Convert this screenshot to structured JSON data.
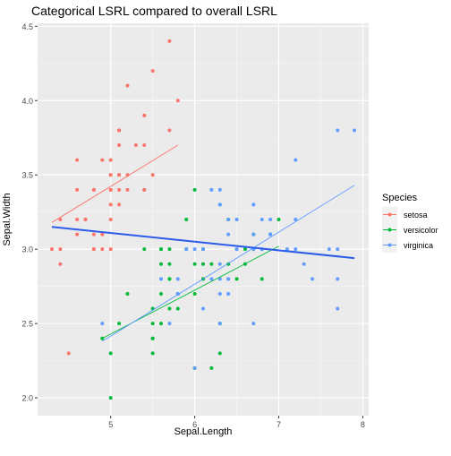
{
  "chart_data": {
    "type": "scatter",
    "title": "Categorical LSRL compared to overall LSRL",
    "xlabel": "Sepal.Length",
    "ylabel": "Sepal.Width",
    "xlim": [
      4.13,
      8.07
    ],
    "ylim": [
      1.88,
      4.52
    ],
    "x_ticks": [
      5,
      6,
      7,
      8
    ],
    "x_tick_labels": [
      "5",
      "6",
      "7",
      "8"
    ],
    "y_ticks": [
      2.0,
      2.5,
      3.0,
      3.5,
      4.0,
      4.5
    ],
    "y_tick_labels": [
      "2.0",
      "2.5",
      "3.0",
      "3.5",
      "4.0",
      "4.5"
    ],
    "grid": true,
    "legend": {
      "title": "Species",
      "position": "right"
    },
    "series": [
      {
        "name": "setosa",
        "color": "#F8766D",
        "points": [
          [
            5.1,
            3.5
          ],
          [
            4.9,
            3.0
          ],
          [
            4.7,
            3.2
          ],
          [
            4.6,
            3.1
          ],
          [
            5.0,
            3.6
          ],
          [
            5.4,
            3.9
          ],
          [
            4.6,
            3.4
          ],
          [
            5.0,
            3.4
          ],
          [
            4.4,
            2.9
          ],
          [
            4.9,
            3.1
          ],
          [
            5.4,
            3.7
          ],
          [
            4.8,
            3.4
          ],
          [
            4.8,
            3.0
          ],
          [
            4.3,
            3.0
          ],
          [
            5.8,
            4.0
          ],
          [
            5.7,
            4.4
          ],
          [
            5.4,
            3.9
          ],
          [
            5.1,
            3.5
          ],
          [
            5.7,
            3.8
          ],
          [
            5.1,
            3.8
          ],
          [
            5.4,
            3.4
          ],
          [
            5.1,
            3.7
          ],
          [
            4.6,
            3.6
          ],
          [
            5.1,
            3.3
          ],
          [
            4.8,
            3.4
          ],
          [
            5.0,
            3.0
          ],
          [
            5.0,
            3.4
          ],
          [
            5.2,
            3.5
          ],
          [
            5.2,
            3.4
          ],
          [
            4.7,
            3.2
          ],
          [
            4.8,
            3.1
          ],
          [
            5.4,
            3.4
          ],
          [
            5.2,
            4.1
          ],
          [
            5.5,
            4.2
          ],
          [
            4.9,
            3.1
          ],
          [
            5.0,
            3.2
          ],
          [
            5.5,
            3.5
          ],
          [
            4.9,
            3.6
          ],
          [
            4.4,
            3.0
          ],
          [
            5.1,
            3.4
          ],
          [
            5.0,
            3.5
          ],
          [
            4.5,
            2.3
          ],
          [
            4.4,
            3.2
          ],
          [
            5.0,
            3.5
          ],
          [
            5.1,
            3.8
          ],
          [
            4.8,
            3.0
          ],
          [
            5.1,
            3.8
          ],
          [
            4.6,
            3.2
          ],
          [
            5.3,
            3.7
          ],
          [
            5.0,
            3.3
          ]
        ],
        "fit": [
          [
            4.3,
            3.18
          ],
          [
            5.8,
            3.7
          ]
        ]
      },
      {
        "name": "versicolor",
        "color": "#00BA38",
        "points": [
          [
            7.0,
            3.2
          ],
          [
            6.4,
            3.2
          ],
          [
            6.9,
            3.1
          ],
          [
            5.5,
            2.3
          ],
          [
            6.5,
            2.8
          ],
          [
            5.7,
            2.8
          ],
          [
            6.3,
            3.3
          ],
          [
            4.9,
            2.4
          ],
          [
            6.6,
            2.9
          ],
          [
            5.2,
            2.7
          ],
          [
            5.0,
            2.0
          ],
          [
            5.9,
            3.0
          ],
          [
            6.0,
            2.2
          ],
          [
            6.1,
            2.9
          ],
          [
            5.6,
            2.9
          ],
          [
            6.7,
            3.1
          ],
          [
            5.6,
            3.0
          ],
          [
            5.8,
            2.7
          ],
          [
            6.2,
            2.2
          ],
          [
            5.6,
            2.5
          ],
          [
            5.9,
            3.2
          ],
          [
            6.1,
            2.8
          ],
          [
            6.3,
            2.5
          ],
          [
            6.1,
            2.8
          ],
          [
            6.4,
            2.9
          ],
          [
            6.6,
            3.0
          ],
          [
            6.8,
            2.8
          ],
          [
            6.7,
            3.0
          ],
          [
            6.0,
            2.9
          ],
          [
            5.7,
            2.6
          ],
          [
            5.5,
            2.4
          ],
          [
            5.5,
            2.4
          ],
          [
            5.8,
            2.7
          ],
          [
            6.0,
            2.7
          ],
          [
            5.4,
            3.0
          ],
          [
            6.0,
            3.4
          ],
          [
            6.7,
            3.1
          ],
          [
            6.3,
            2.3
          ],
          [
            5.6,
            3.0
          ],
          [
            5.5,
            2.5
          ],
          [
            5.5,
            2.6
          ],
          [
            6.1,
            3.0
          ],
          [
            5.8,
            2.6
          ],
          [
            5.0,
            2.3
          ],
          [
            5.6,
            2.7
          ],
          [
            5.7,
            3.0
          ],
          [
            5.7,
            2.9
          ],
          [
            6.2,
            2.9
          ],
          [
            5.1,
            2.5
          ],
          [
            5.7,
            2.8
          ]
        ],
        "fit": [
          [
            4.9,
            2.4
          ],
          [
            7.0,
            3.02
          ]
        ]
      },
      {
        "name": "virginica",
        "color": "#619CFF",
        "points": [
          [
            6.3,
            3.3
          ],
          [
            5.8,
            2.7
          ],
          [
            7.1,
            3.0
          ],
          [
            6.3,
            2.9
          ],
          [
            6.5,
            3.0
          ],
          [
            7.6,
            3.0
          ],
          [
            4.9,
            2.5
          ],
          [
            7.3,
            2.9
          ],
          [
            6.7,
            2.5
          ],
          [
            7.2,
            3.6
          ],
          [
            6.5,
            3.2
          ],
          [
            6.4,
            2.7
          ],
          [
            6.8,
            3.0
          ],
          [
            5.7,
            2.5
          ],
          [
            5.8,
            2.8
          ],
          [
            6.4,
            3.2
          ],
          [
            6.5,
            3.0
          ],
          [
            7.7,
            3.8
          ],
          [
            7.7,
            2.6
          ],
          [
            6.0,
            2.2
          ],
          [
            6.9,
            3.2
          ],
          [
            5.6,
            2.8
          ],
          [
            7.7,
            2.8
          ],
          [
            6.3,
            2.7
          ],
          [
            6.7,
            3.3
          ],
          [
            7.2,
            3.2
          ],
          [
            6.2,
            2.8
          ],
          [
            6.1,
            3.0
          ],
          [
            6.4,
            2.8
          ],
          [
            7.2,
            3.0
          ],
          [
            7.4,
            2.8
          ],
          [
            7.9,
            3.8
          ],
          [
            6.4,
            2.8
          ],
          [
            6.3,
            2.8
          ],
          [
            6.1,
            2.6
          ],
          [
            7.7,
            3.0
          ],
          [
            6.3,
            3.4
          ],
          [
            6.4,
            3.1
          ],
          [
            6.0,
            3.0
          ],
          [
            6.9,
            3.1
          ],
          [
            6.7,
            3.1
          ],
          [
            6.9,
            3.1
          ],
          [
            5.8,
            2.7
          ],
          [
            6.8,
            3.2
          ],
          [
            6.7,
            3.3
          ],
          [
            6.7,
            3.0
          ],
          [
            6.3,
            2.5
          ],
          [
            6.5,
            3.0
          ],
          [
            6.2,
            3.4
          ],
          [
            5.9,
            3.0
          ]
        ],
        "fit": [
          [
            4.9,
            2.38
          ],
          [
            7.9,
            3.43
          ]
        ]
      }
    ],
    "overall_fit": {
      "color": "#2B5BE8",
      "line": [
        [
          4.3,
          3.15
        ],
        [
          7.9,
          2.94
        ]
      ]
    }
  }
}
